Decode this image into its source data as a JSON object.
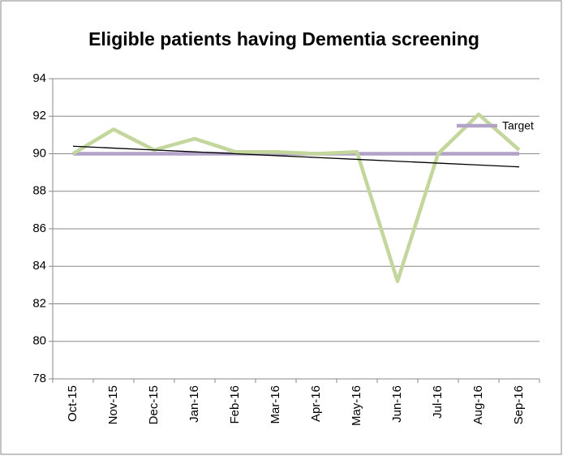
{
  "chart_data": {
    "type": "line",
    "title": "Eligible patients having Dementia screening",
    "categories": [
      "Oct-15",
      "Nov-15",
      "Dec-15",
      "Jan-16",
      "Feb-16",
      "Mar-16",
      "Apr-16",
      "May-16",
      "Jun-16",
      "Jul-16",
      "Aug-16",
      "Sep-16"
    ],
    "series": [
      {
        "color": "#c3d69b",
        "values": [
          90.0,
          91.3,
          90.2,
          90.8,
          90.1,
          90.1,
          90.0,
          90.1,
          83.2,
          90.0,
          92.1,
          90.2
        ]
      },
      {
        "name": "Target",
        "color": "#b3a2c7",
        "values": [
          90,
          90,
          90,
          90,
          90,
          90,
          90,
          90,
          90,
          90,
          90,
          90
        ]
      },
      {
        "color": "#000000",
        "trendline": true,
        "values": [
          90.4,
          90.3,
          90.2,
          90.1,
          90.0,
          89.9,
          89.8,
          89.7,
          89.6,
          89.5,
          89.4,
          89.3
        ]
      }
    ],
    "ylim": [
      78,
      94
    ],
    "yticks": [
      78,
      80,
      82,
      84,
      86,
      88,
      90,
      92,
      94
    ],
    "grid": true,
    "legend": "right"
  }
}
